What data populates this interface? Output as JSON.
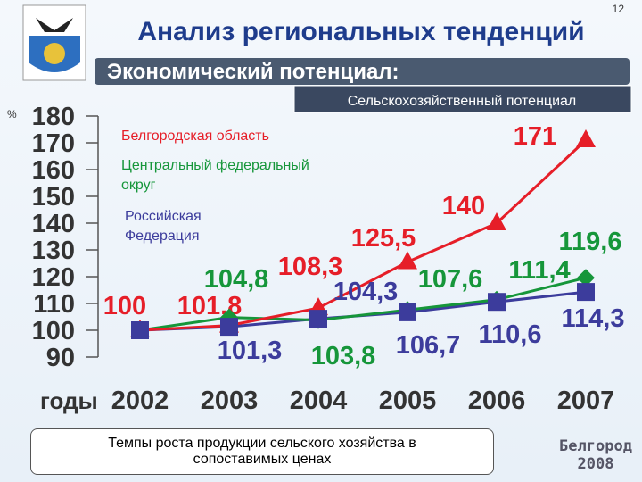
{
  "page_number": "12",
  "header": {
    "title": "Анализ региональных тенденций",
    "subtitle": "Экономический потенциал:",
    "section": "Сельскохозяйственный потенциал"
  },
  "chart_data": {
    "type": "line",
    "y_unit": "%",
    "x_label": "годы",
    "categories": [
      "2002",
      "2003",
      "2004",
      "2005",
      "2006",
      "2007"
    ],
    "ylim": [
      90,
      180
    ],
    "yticks": [
      90,
      100,
      110,
      120,
      130,
      140,
      150,
      160,
      170,
      180
    ],
    "series": [
      {
        "name": "Белгородская область",
        "color": "#e61e28",
        "marker": "triangle",
        "values": [
          100,
          101.8,
          108.3,
          125.5,
          140,
          171
        ],
        "value_labels": [
          "100",
          "101,8",
          "108,3",
          "125,5",
          "140",
          "171"
        ]
      },
      {
        "name": "Центральный федеральный округ",
        "color": "#16963a",
        "marker": "diamond",
        "values": [
          100,
          104.8,
          103.8,
          107.6,
          111.4,
          119.6
        ],
        "value_labels": [
          null,
          "104,8",
          "103,8",
          "107,6",
          "111,4",
          "119,6"
        ]
      },
      {
        "name": "Российская Федерация",
        "color": "#3c3c9c",
        "marker": "square",
        "values": [
          100,
          101.3,
          104.3,
          106.7,
          110.6,
          114.3
        ],
        "value_labels": [
          null,
          "101,3",
          "104,3",
          "106,7",
          "110,6",
          "114,3"
        ]
      }
    ]
  },
  "caption": "Темпы роста продукции сельского хозяйства в сопоставимых ценах",
  "footer": "Белгород 2008"
}
